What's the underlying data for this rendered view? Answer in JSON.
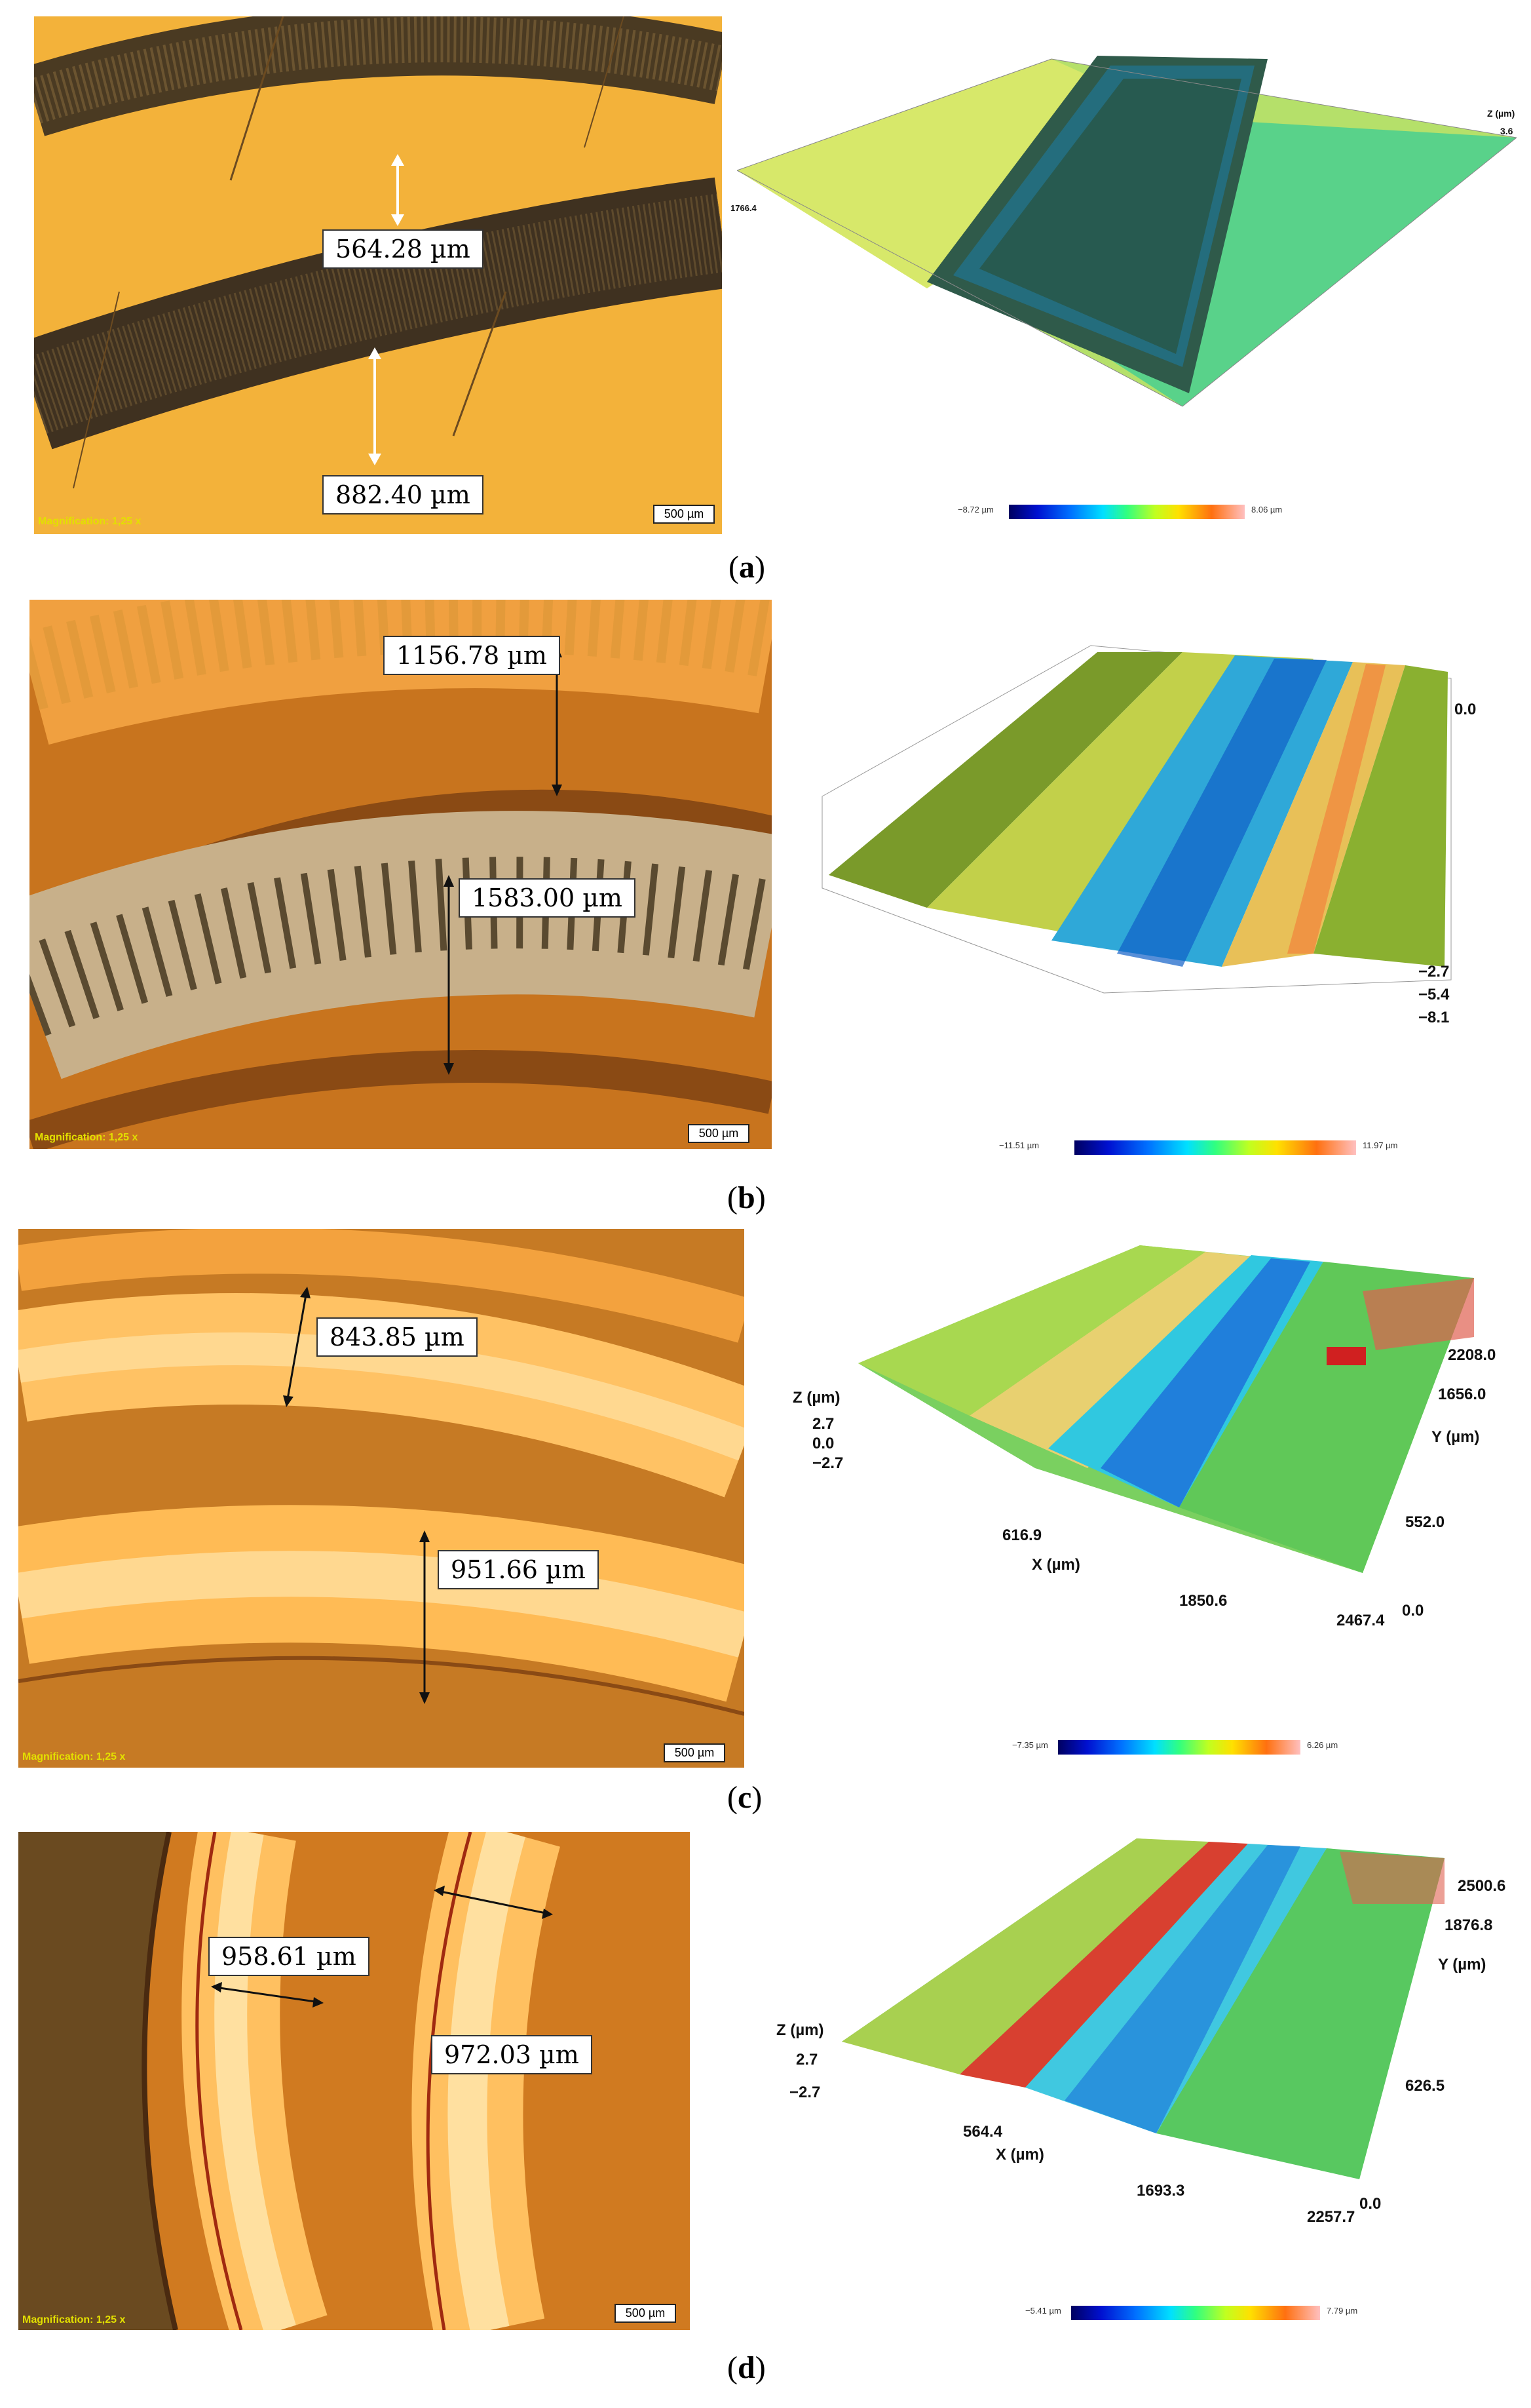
{
  "panels": [
    {
      "id": "a",
      "caption": "a",
      "measurements": [
        "564.28 µm",
        "882.40 µm"
      ],
      "scalebar": "500 µm",
      "magnification": "Magnification: 1,25 x",
      "surface": {
        "colorbar_min": "−8.72 µm",
        "colorbar_max": "8.06 µm",
        "z_label": "Z (µm)",
        "z_tick": "3.6",
        "x_tick": "1766.4"
      }
    },
    {
      "id": "b",
      "caption": "b",
      "measurements": [
        "1156.78 µm",
        "1583.00 µm"
      ],
      "scalebar": "500 µm",
      "magnification": "Magnification: 1,25 x",
      "surface": {
        "colorbar_min": "−11.51 µm",
        "colorbar_max": "11.97 µm",
        "z_ticks": [
          "0.0",
          "−2.7",
          "−5.4",
          "−8.1"
        ]
      }
    },
    {
      "id": "c",
      "caption": "c",
      "measurements": [
        "843.85 µm",
        "951.66 µm"
      ],
      "scalebar": "500 µm",
      "magnification": "Magnification: 1,25 x",
      "surface": {
        "colorbar_min": "−7.35 µm",
        "colorbar_max": "6.26 µm",
        "z_label": "Z (µm)",
        "z_ticks": [
          "2.7",
          "0.0",
          "−2.7"
        ],
        "x_label": "X (µm)",
        "x_ticks": [
          "616.9",
          "1850.6",
          "2467.4"
        ],
        "y_label": "Y (µm)",
        "y_ticks": [
          "2208.0",
          "1656.0",
          "552.0",
          "0.0"
        ]
      }
    },
    {
      "id": "d",
      "caption": "d",
      "measurements": [
        "958.61 µm",
        "972.03 µm"
      ],
      "scalebar": "500 µm",
      "magnification": "Magnification: 1,25 x",
      "surface": {
        "colorbar_min": "−5.41 µm",
        "colorbar_max": "7.79 µm",
        "z_label": "Z (µm)",
        "z_ticks": [
          "2.7",
          "−2.7"
        ],
        "x_label": "X (µm)",
        "x_ticks": [
          "564.4",
          "1693.3",
          "2257.7"
        ],
        "y_label": "Y (µm)",
        "y_ticks": [
          "2500.6",
          "1876.8",
          "626.5",
          "0.0"
        ]
      }
    }
  ]
}
